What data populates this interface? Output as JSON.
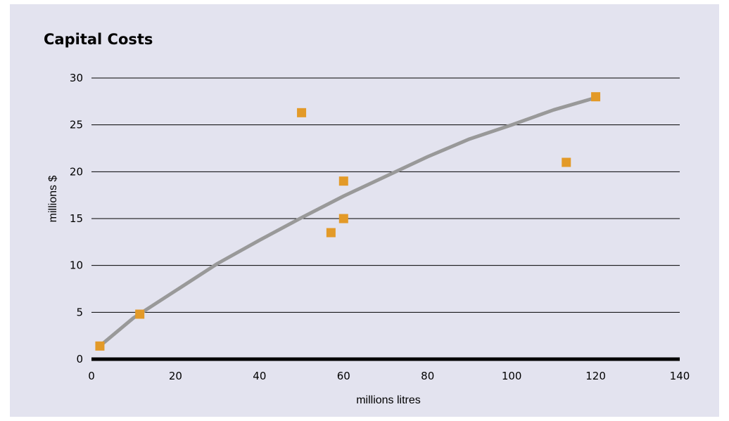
{
  "chart_data": {
    "type": "scatter",
    "title": "Capital Costs",
    "xlabel": "millions litres",
    "ylabel": "millions $",
    "xlim": [
      0,
      140
    ],
    "ylim": [
      0,
      30
    ],
    "x_ticks": [
      "0",
      "20",
      "40",
      "60",
      "80",
      "100",
      "120",
      "140"
    ],
    "y_ticks": [
      "0",
      "5",
      "10",
      "15",
      "20",
      "25",
      "30"
    ],
    "grid": "horizontal",
    "series": [
      {
        "points": [
          {
            "x": 2,
            "y": 1.4
          },
          {
            "x": 11.5,
            "y": 4.8
          },
          {
            "x": 50,
            "y": 26.3
          },
          {
            "x": 57,
            "y": 13.5
          },
          {
            "x": 60,
            "y": 19
          },
          {
            "x": 60,
            "y": 15
          },
          {
            "x": 113,
            "y": 21
          },
          {
            "x": 120,
            "y": 28
          }
        ],
        "marker_color": "#e39a28"
      }
    ],
    "trendline": {
      "type": "power",
      "color": "#999999",
      "points": [
        {
          "x": 2,
          "y": 1.4
        },
        {
          "x": 10,
          "y": 4.4
        },
        {
          "x": 20,
          "y": 7.3
        },
        {
          "x": 30,
          "y": 10.2
        },
        {
          "x": 40,
          "y": 12.7
        },
        {
          "x": 50,
          "y": 15.1
        },
        {
          "x": 60,
          "y": 17.4
        },
        {
          "x": 70,
          "y": 19.5
        },
        {
          "x": 80,
          "y": 21.6
        },
        {
          "x": 90,
          "y": 23.5
        },
        {
          "x": 100,
          "y": 25.0
        },
        {
          "x": 110,
          "y": 26.6
        },
        {
          "x": 120,
          "y": 27.9
        }
      ]
    },
    "colors": {
      "background": "#e3e3ef",
      "gridline": "#000000",
      "axis": "#000000",
      "marker": "#e39a28",
      "trendline": "#999999"
    }
  }
}
